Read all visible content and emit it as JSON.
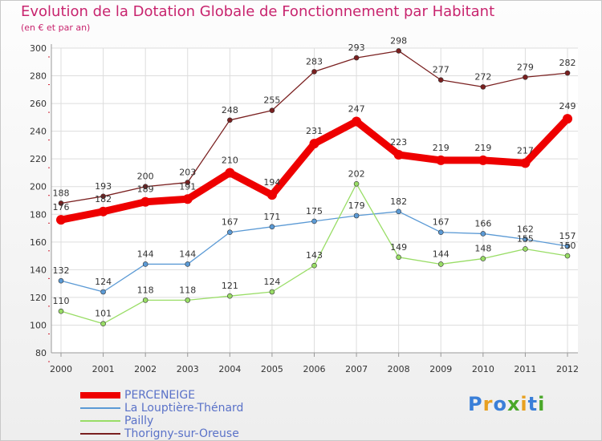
{
  "title": "Evolution de la Dotation Globale de Fonctionnement par Habitant",
  "subtitle": "(en € et par an)",
  "logo": {
    "letters": [
      "P",
      "r",
      "o",
      "x",
      "i",
      "t",
      "i"
    ],
    "colors": [
      "#3a7fd8",
      "#e8a020",
      "#3a7fd8",
      "#4aa82a",
      "#e8a020",
      "#3a7fd8",
      "#4aa82a"
    ]
  },
  "chart_data": {
    "type": "line",
    "x": [
      "2000",
      "2001",
      "2002",
      "2003",
      "2004",
      "2005",
      "2006",
      "2007",
      "2008",
      "2009",
      "2010",
      "2011",
      "2012"
    ],
    "ylim": [
      80,
      300
    ],
    "yticks": [
      "80",
      "100",
      "120",
      "140",
      "160",
      "180",
      "200",
      "220",
      "240",
      "260",
      "280",
      "300"
    ],
    "grid": true,
    "legend_position": "bottom-left",
    "series": [
      {
        "name": "PERCENEIGE",
        "color": "#ee0000",
        "values": [
          176,
          182,
          189,
          191,
          210,
          194,
          231,
          247,
          223,
          219,
          219,
          217,
          249
        ]
      },
      {
        "name": "La Louptière-Thénard",
        "color": "#5b9ad5",
        "values": [
          132,
          124,
          144,
          144,
          167,
          171,
          175,
          179,
          182,
          167,
          166,
          162,
          157
        ]
      },
      {
        "name": "Pailly",
        "color": "#99dd66",
        "values": [
          110,
          101,
          118,
          118,
          121,
          124,
          143,
          202,
          149,
          144,
          148,
          155,
          150
        ]
      },
      {
        "name": "Thorigny-sur-Oreuse",
        "color": "#7a2020",
        "values": [
          188,
          193,
          200,
          203,
          248,
          255,
          283,
          293,
          298,
          277,
          272,
          279,
          282
        ]
      }
    ],
    "data_labels": [
      [
        "176",
        "182",
        "189",
        "191",
        "210",
        "194",
        "231",
        "247",
        "223",
        "219",
        "219",
        "217",
        "249"
      ],
      [
        "132",
        "124",
        "144",
        "144",
        "167",
        "171",
        "175",
        "179",
        "182",
        "167",
        "166",
        "162",
        "157"
      ],
      [
        "110",
        "101",
        "118",
        "118",
        "121",
        "124",
        "143",
        "202",
        "149",
        "144",
        "148",
        "155",
        "150"
      ],
      [
        "188",
        "193",
        "200",
        "203",
        "248",
        "255",
        "283",
        "293",
        "298",
        "277",
        "272",
        "279",
        "282"
      ]
    ]
  }
}
